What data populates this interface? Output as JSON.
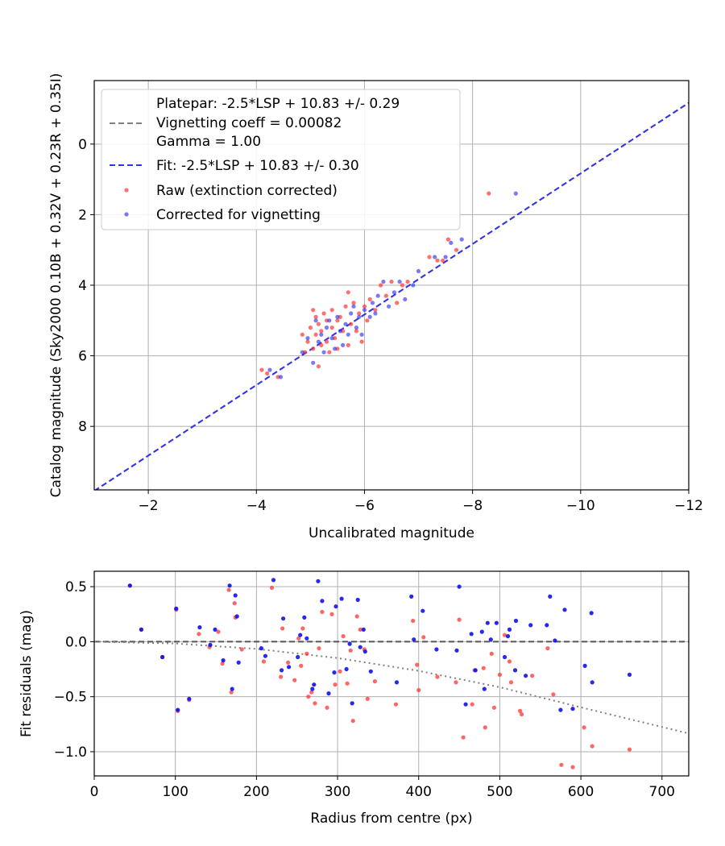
{
  "chart_data": [
    {
      "type": "scatter",
      "xlabel": "Uncalibrated magnitude",
      "ylabel": "Catalog magnitude (Sky2000 0.10B + 0.32V + 0.23R + 0.35I)",
      "xlim": [
        -1.0,
        -12.0
      ],
      "ylim": [
        9.8,
        -1.8
      ],
      "x_ticks": [
        -2,
        -4,
        -6,
        -8,
        -10,
        -12
      ],
      "x_tick_labels": [
        "−2",
        "−4",
        "−6",
        "−8",
        "−10",
        "−12"
      ],
      "y_ticks": [
        0,
        2,
        4,
        6,
        8
      ],
      "y_tick_labels": [
        "0",
        "2",
        "4",
        "6",
        "8"
      ],
      "grid": true,
      "legend": "top-left",
      "legend_entries": {
        "platepar": "Platepar: -2.5*LSP + 10.83 +/- 0.29",
        "vignetting": "Vignetting coeff = 0.00082",
        "gamma": "Gamma = 1.00",
        "fit": "Fit: -2.5*LSP + 10.83 +/- 0.30",
        "raw": "Raw (extinction corrected)",
        "corrected": "Corrected for vignetting"
      },
      "lines": [
        {
          "name": "Platepar: -2.5*LSP + 10.83 +/- 0.29",
          "color": "#808080",
          "style": "dashed",
          "x": [
            -1.0,
            -12.0
          ],
          "y": [
            9.83,
            -1.17
          ]
        },
        {
          "name": "Fit: -2.5*LSP + 10.83 +/- 0.30",
          "color": "#3333ee",
          "style": "dashed",
          "x": [
            -1.0,
            -12.0
          ],
          "y": [
            9.83,
            -1.17
          ]
        }
      ],
      "series": [
        {
          "name": "Raw (extinction corrected)",
          "color": "#ff3333",
          "points": [
            [
              -4.1,
              6.4
            ],
            [
              -4.2,
              6.5
            ],
            [
              -4.4,
              6.6
            ],
            [
              -4.85,
              5.4
            ],
            [
              -4.9,
              5.9
            ],
            [
              -4.95,
              5.6
            ],
            [
              -5.0,
              5.2
            ],
            [
              -5.05,
              4.7
            ],
            [
              -5.05,
              5.8
            ],
            [
              -5.1,
              4.9
            ],
            [
              -5.1,
              5.4
            ],
            [
              -5.15,
              5.1
            ],
            [
              -5.15,
              6.3
            ],
            [
              -5.2,
              5.3
            ],
            [
              -5.2,
              5.7
            ],
            [
              -5.25,
              4.8
            ],
            [
              -5.3,
              5.0
            ],
            [
              -5.3,
              5.6
            ],
            [
              -5.35,
              5.9
            ],
            [
              -5.4,
              5.2
            ],
            [
              -5.4,
              4.7
            ],
            [
              -5.45,
              5.5
            ],
            [
              -5.5,
              5.0
            ],
            [
              -5.5,
              5.8
            ],
            [
              -5.55,
              4.9
            ],
            [
              -5.6,
              5.3
            ],
            [
              -5.65,
              4.6
            ],
            [
              -5.7,
              5.7
            ],
            [
              -5.7,
              4.2
            ],
            [
              -5.75,
              5.1
            ],
            [
              -5.8,
              4.5
            ],
            [
              -5.85,
              5.3
            ],
            [
              -5.9,
              4.8
            ],
            [
              -5.95,
              5.6
            ],
            [
              -6.0,
              4.6
            ],
            [
              -6.05,
              5.0
            ],
            [
              -6.1,
              4.4
            ],
            [
              -6.2,
              4.7
            ],
            [
              -6.3,
              4.0
            ],
            [
              -6.4,
              4.3
            ],
            [
              -6.5,
              3.9
            ],
            [
              -6.6,
              4.5
            ],
            [
              -6.7,
              4.0
            ],
            [
              -6.8,
              3.9
            ],
            [
              -7.2,
              3.2
            ],
            [
              -7.35,
              3.3
            ],
            [
              -7.45,
              3.3
            ],
            [
              -7.55,
              2.7
            ],
            [
              -7.7,
              3.0
            ],
            [
              -8.3,
              1.4
            ]
          ]
        },
        {
          "name": "Corrected for vignetting",
          "color": "#2222ee",
          "points": [
            [
              -4.25,
              6.4
            ],
            [
              -4.45,
              6.6
            ],
            [
              -4.85,
              5.9
            ],
            [
              -4.95,
              5.5
            ],
            [
              -5.05,
              6.2
            ],
            [
              -5.1,
              5.0
            ],
            [
              -5.15,
              5.6
            ],
            [
              -5.2,
              5.4
            ],
            [
              -5.25,
              5.9
            ],
            [
              -5.3,
              5.2
            ],
            [
              -5.35,
              5.0
            ],
            [
              -5.4,
              5.5
            ],
            [
              -5.45,
              5.8
            ],
            [
              -5.5,
              4.9
            ],
            [
              -5.55,
              5.3
            ],
            [
              -5.6,
              5.7
            ],
            [
              -5.65,
              5.1
            ],
            [
              -5.7,
              5.4
            ],
            [
              -5.75,
              4.8
            ],
            [
              -5.8,
              4.6
            ],
            [
              -5.85,
              5.2
            ],
            [
              -5.9,
              4.9
            ],
            [
              -5.95,
              5.4
            ],
            [
              -6.0,
              4.7
            ],
            [
              -6.1,
              4.9
            ],
            [
              -6.15,
              4.5
            ],
            [
              -6.2,
              4.8
            ],
            [
              -6.25,
              4.3
            ],
            [
              -6.35,
              3.9
            ],
            [
              -6.45,
              4.6
            ],
            [
              -6.55,
              4.2
            ],
            [
              -6.65,
              3.9
            ],
            [
              -6.75,
              4.4
            ],
            [
              -6.9,
              4.0
            ],
            [
              -7.0,
              3.6
            ],
            [
              -7.3,
              3.2
            ],
            [
              -7.5,
              3.2
            ],
            [
              -7.6,
              2.8
            ],
            [
              -7.8,
              2.7
            ],
            [
              -8.8,
              1.4
            ]
          ]
        }
      ]
    },
    {
      "type": "scatter",
      "xlabel": "Radius from centre (px)",
      "ylabel": "Fit residuals (mag)",
      "xlim": [
        0,
        733
      ],
      "ylim": [
        -1.22,
        0.64
      ],
      "x_ticks": [
        0,
        100,
        200,
        300,
        400,
        500,
        600,
        700
      ],
      "x_tick_labels": [
        "0",
        "100",
        "200",
        "300",
        "400",
        "500",
        "600",
        "700"
      ],
      "y_ticks": [
        0.5,
        0.0,
        -0.5,
        -1.0
      ],
      "y_tick_labels": [
        "0.5",
        "0.0",
        "−0.5",
        "−1.0"
      ],
      "grid": true,
      "lines": [
        {
          "name": "zero line",
          "color": "#555555",
          "style": "dashed",
          "x": [
            0,
            733
          ],
          "y": [
            0,
            0
          ]
        },
        {
          "name": "vignetting model",
          "color": "#808080",
          "style": "dotted",
          "x": [
            0,
            100,
            200,
            300,
            400,
            500,
            600,
            733
          ],
          "y": [
            0,
            -0.016,
            -0.066,
            -0.149,
            -0.265,
            -0.414,
            -0.597,
            -0.834
          ]
        }
      ],
      "series": [
        {
          "name": "Raw (extinction corrected)",
          "color": "#ff3333",
          "points": [
            [
              44,
              0.51
            ],
            [
              58,
              0.11
            ],
            [
              84,
              -0.14
            ],
            [
              101,
              0.29
            ],
            [
              103,
              -0.63
            ],
            [
              117,
              -0.53
            ],
            [
              129,
              0.07
            ],
            [
              142,
              -0.05
            ],
            [
              153,
              0.09
            ],
            [
              158,
              -0.2
            ],
            [
              166,
              0.47
            ],
            [
              169,
              -0.46
            ],
            [
              173,
              0.35
            ],
            [
              174,
              0.22
            ],
            [
              182,
              -0.07
            ],
            [
              209,
              -0.18
            ],
            [
              219,
              0.49
            ],
            [
              230,
              -0.32
            ],
            [
              232,
              0.12
            ],
            [
              239,
              -0.19
            ],
            [
              247,
              -0.35
            ],
            [
              252,
              0.03
            ],
            [
              255,
              -0.22
            ],
            [
              257,
              0.12
            ],
            [
              262,
              -0.11
            ],
            [
              264,
              -0.5
            ],
            [
              268,
              -0.46
            ],
            [
              272,
              -0.56
            ],
            [
              277,
              -0.06
            ],
            [
              281,
              0.27
            ],
            [
              287,
              -0.6
            ],
            [
              293,
              0.25
            ],
            [
              297,
              -0.39
            ],
            [
              303,
              -0.27
            ],
            [
              307,
              0.05
            ],
            [
              312,
              -0.38
            ],
            [
              316,
              -0.08
            ],
            [
              319,
              -0.72
            ],
            [
              324,
              0.23
            ],
            [
              328,
              0.11
            ],
            [
              333,
              -0.07
            ],
            [
              337,
              -0.52
            ],
            [
              346,
              -0.36
            ],
            [
              372,
              -0.57
            ],
            [
              393,
              0.19
            ],
            [
              398,
              -0.21
            ],
            [
              400,
              -0.44
            ],
            [
              406,
              0.04
            ],
            [
              423,
              -0.32
            ],
            [
              446,
              -0.37
            ],
            [
              450,
              0.2
            ],
            [
              455,
              -0.87
            ],
            [
              466,
              -0.57
            ],
            [
              469,
              -0.26
            ],
            [
              480,
              -0.24
            ],
            [
              482,
              -0.78
            ],
            [
              490,
              -0.11
            ],
            [
              493,
              -0.6
            ],
            [
              500,
              -0.3
            ],
            [
              506,
              0.06
            ],
            [
              512,
              -0.18
            ],
            [
              514,
              -0.37
            ],
            [
              525,
              -0.63
            ],
            [
              527,
              -0.66
            ],
            [
              540,
              -0.31
            ],
            [
              559,
              -0.06
            ],
            [
              566,
              -0.48
            ],
            [
              576,
              -1.12
            ],
            [
              590,
              -1.14
            ],
            [
              604,
              -0.78
            ],
            [
              614,
              -0.95
            ],
            [
              660,
              -0.98
            ]
          ]
        },
        {
          "name": "Corrected for vignetting",
          "color": "#1111ee",
          "points": [
            [
              44,
              0.51
            ],
            [
              58,
              0.11
            ],
            [
              84,
              -0.14
            ],
            [
              101,
              0.3
            ],
            [
              103,
              -0.62
            ],
            [
              117,
              -0.52
            ],
            [
              130,
              0.13
            ],
            [
              143,
              -0.03
            ],
            [
              149,
              0.11
            ],
            [
              159,
              -0.17
            ],
            [
              167,
              0.51
            ],
            [
              170,
              -0.43
            ],
            [
              174,
              0.42
            ],
            [
              176,
              0.23
            ],
            [
              178,
              -0.19
            ],
            [
              206,
              -0.06
            ],
            [
              211,
              -0.13
            ],
            [
              221,
              0.56
            ],
            [
              231,
              -0.26
            ],
            [
              233,
              0.21
            ],
            [
              240,
              -0.23
            ],
            [
              251,
              -0.14
            ],
            [
              254,
              0.06
            ],
            [
              259,
              0.22
            ],
            [
              262,
              0.03
            ],
            [
              269,
              -0.43
            ],
            [
              271,
              -0.39
            ],
            [
              276,
              0.55
            ],
            [
              281,
              0.37
            ],
            [
              289,
              -0.47
            ],
            [
              296,
              -0.28
            ],
            [
              298,
              0.32
            ],
            [
              305,
              0.39
            ],
            [
              311,
              -0.25
            ],
            [
              315,
              -0.02
            ],
            [
              318,
              -0.56
            ],
            [
              325,
              0.38
            ],
            [
              328,
              -0.05
            ],
            [
              332,
              0.11
            ],
            [
              334,
              -0.09
            ],
            [
              341,
              -0.27
            ],
            [
              373,
              -0.37
            ],
            [
              391,
              0.41
            ],
            [
              394,
              0.02
            ],
            [
              405,
              0.28
            ],
            [
              422,
              -0.07
            ],
            [
              447,
              -0.08
            ],
            [
              450,
              0.5
            ],
            [
              458,
              -0.57
            ],
            [
              465,
              0.07
            ],
            [
              470,
              -0.26
            ],
            [
              478,
              0.09
            ],
            [
              481,
              -0.43
            ],
            [
              485,
              0.17
            ],
            [
              489,
              0.02
            ],
            [
              496,
              0.17
            ],
            [
              506,
              -0.14
            ],
            [
              510,
              0.05
            ],
            [
              512,
              0.11
            ],
            [
              519,
              -0.26
            ],
            [
              520,
              0.19
            ],
            [
              532,
              -0.31
            ],
            [
              538,
              0.15
            ],
            [
              558,
              0.15
            ],
            [
              562,
              0.41
            ],
            [
              568,
              0.01
            ],
            [
              575,
              -0.62
            ],
            [
              580,
              0.29
            ],
            [
              590,
              -0.61
            ],
            [
              605,
              -0.22
            ],
            [
              614,
              -0.37
            ],
            [
              613,
              0.26
            ],
            [
              660,
              -0.3
            ]
          ]
        }
      ]
    }
  ]
}
